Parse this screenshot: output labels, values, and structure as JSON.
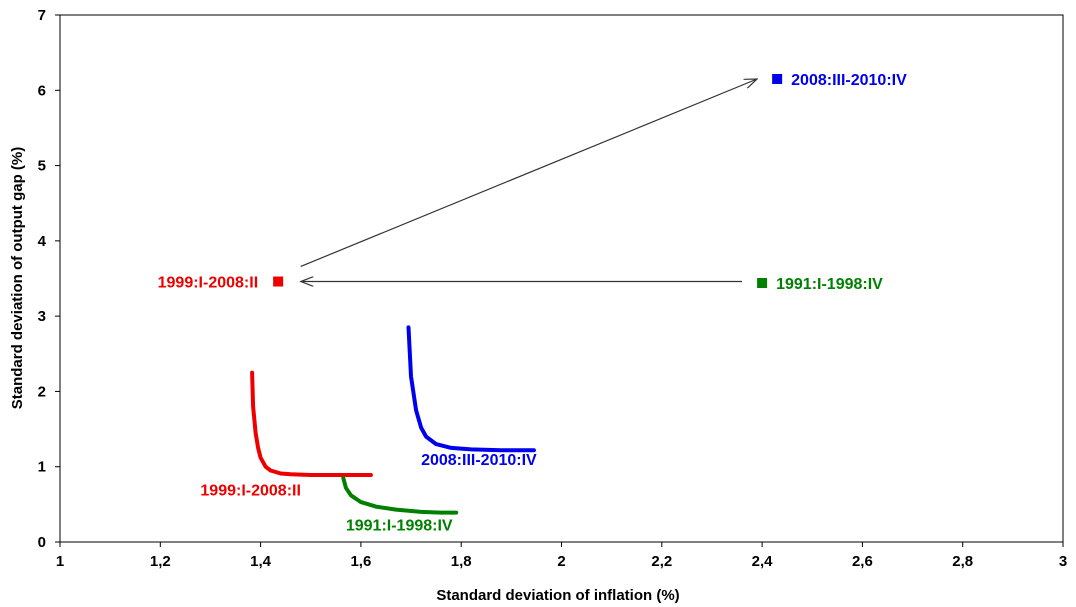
{
  "chart_data": {
    "type": "scatter",
    "xlabel": "Standard deviation of inflation (%)",
    "ylabel": "Standard deviation of output gap (%)",
    "xlim": [
      1,
      3
    ],
    "ylim": [
      0,
      7
    ],
    "x_ticks": [
      "1",
      "1,2",
      "1,4",
      "1,6",
      "1,8",
      "2",
      "2,2",
      "2,4",
      "2,6",
      "2,8",
      "3"
    ],
    "y_ticks": [
      "0",
      "1",
      "2",
      "3",
      "4",
      "5",
      "6",
      "7"
    ],
    "x_tick_values": [
      1,
      1.2,
      1.4,
      1.6,
      1.8,
      2,
      2.2,
      2.4,
      2.6,
      2.8,
      3
    ],
    "y_tick_values": [
      0,
      1,
      2,
      3,
      4,
      5,
      6,
      7
    ],
    "grid": false,
    "points": [
      {
        "label": "2008:III-2010:IV",
        "x": 2.43,
        "y": 6.15,
        "color": "#0000ee",
        "label_side": "right"
      },
      {
        "label": "1991:I-1998:IV",
        "x": 2.4,
        "y": 3.44,
        "color": "#008000",
        "label_side": "right"
      },
      {
        "label": "1999:I-2008:II",
        "x": 1.435,
        "y": 3.46,
        "color": "#ee0000",
        "label_side": "left"
      }
    ],
    "curves": [
      {
        "label": "1999:I-2008:II",
        "color": "#ee0000",
        "x": [
          1.383,
          1.385,
          1.39,
          1.395,
          1.4,
          1.41,
          1.42,
          1.44,
          1.46,
          1.5,
          1.55,
          1.6,
          1.62
        ],
        "y": [
          2.25,
          1.8,
          1.45,
          1.25,
          1.12,
          1.0,
          0.95,
          0.91,
          0.9,
          0.89,
          0.89,
          0.89,
          0.89
        ]
      },
      {
        "label": "1991:I-1998:IV",
        "color": "#008000",
        "x": [
          1.565,
          1.57,
          1.58,
          1.6,
          1.63,
          1.67,
          1.72,
          1.76,
          1.79
        ],
        "y": [
          0.85,
          0.72,
          0.62,
          0.53,
          0.47,
          0.43,
          0.4,
          0.39,
          0.39
        ]
      },
      {
        "label": "2008:III-2010:IV",
        "color": "#0000ee",
        "x": [
          1.695,
          1.7,
          1.71,
          1.72,
          1.73,
          1.75,
          1.78,
          1.82,
          1.88,
          1.945
        ],
        "y": [
          2.85,
          2.2,
          1.75,
          1.52,
          1.4,
          1.3,
          1.25,
          1.23,
          1.22,
          1.22
        ]
      }
    ],
    "curve_labels": [
      {
        "label": "2008:III-2010:IV",
        "x": 1.72,
        "y": 1.02,
        "color": "#0000ee"
      },
      {
        "label": "1999:I-2008:II",
        "x": 1.28,
        "y": 0.62,
        "color": "#ee0000"
      },
      {
        "label": "1991:I-1998:IV",
        "x": 1.57,
        "y": 0.15,
        "color": "#008000"
      }
    ],
    "arrows": [
      {
        "from": [
          2.36,
          3.46
        ],
        "to": [
          1.48,
          3.46
        ]
      },
      {
        "from": [
          1.48,
          3.66
        ],
        "to": [
          2.39,
          6.15
        ]
      }
    ]
  }
}
